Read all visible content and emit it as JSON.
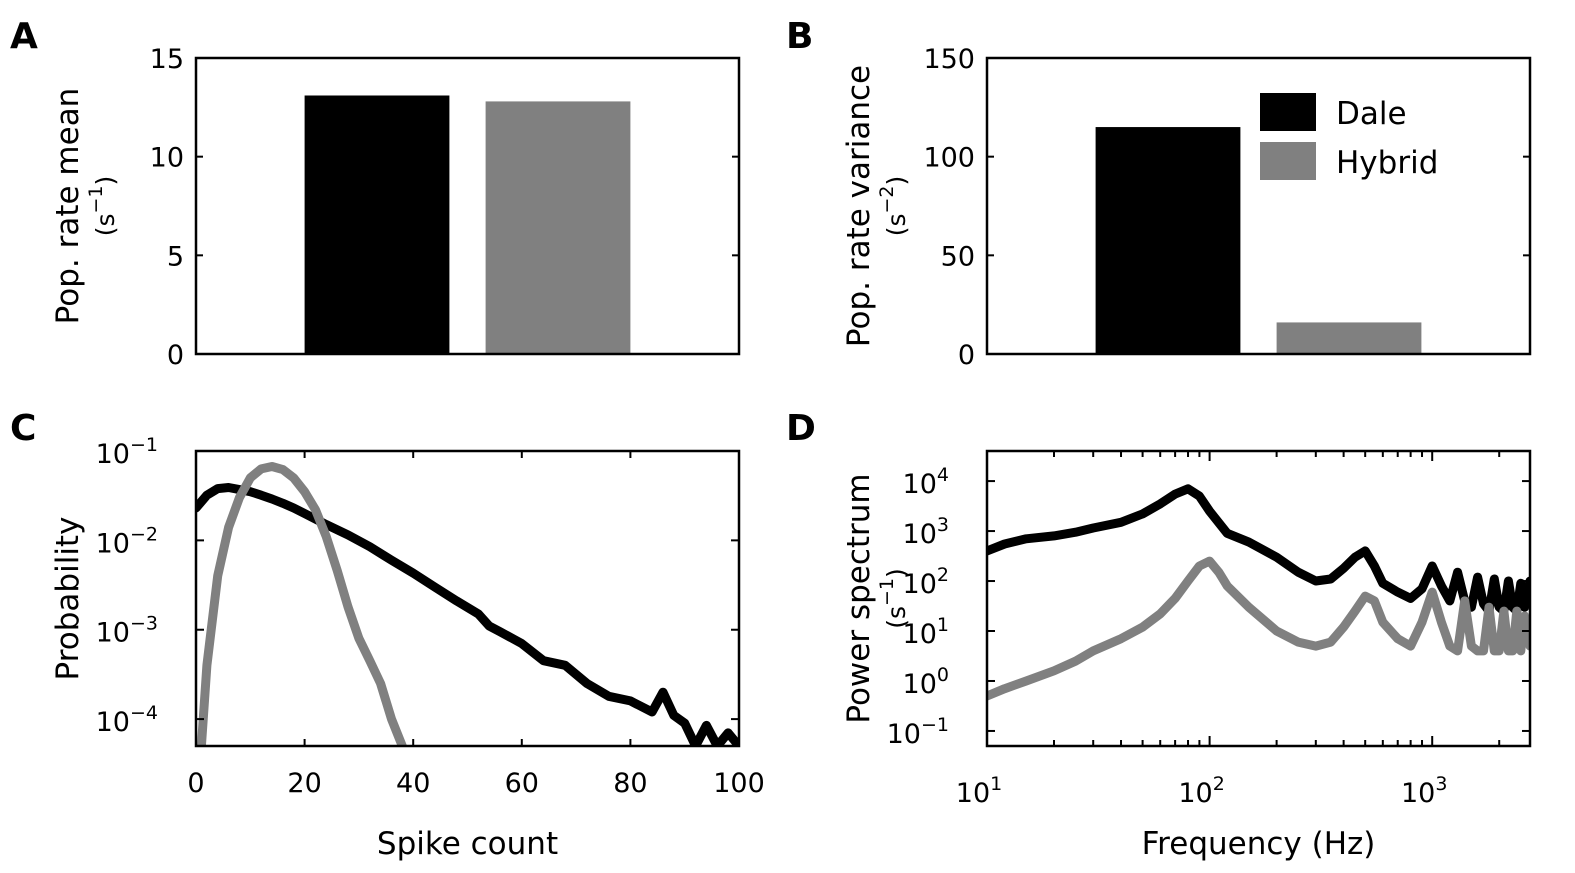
{
  "colors": {
    "Dale": "#000000",
    "Hybrid": "#808080",
    "axes": "#000000"
  },
  "legend": {
    "placement": "top-right",
    "entries": [
      "Dale",
      "Hybrid"
    ]
  },
  "chart_data": [
    {
      "panel": "A",
      "type": "bar",
      "categories": [
        "Dale",
        "Hybrid"
      ],
      "values": [
        13.1,
        12.8
      ],
      "ylabel": "Pop. rate mean",
      "yunit": {
        "base": "(s",
        "exp": "−1",
        "close": ")"
      },
      "ylim": [
        0,
        15
      ],
      "yticks": [
        "0",
        "5",
        "10",
        "15"
      ]
    },
    {
      "panel": "B",
      "type": "bar",
      "categories": [
        "Dale",
        "Hybrid"
      ],
      "values": [
        115,
        16
      ],
      "ylabel": "Pop. rate variance",
      "yunit": {
        "base": "(s",
        "exp": "−2",
        "close": ")"
      },
      "ylim": [
        0,
        150
      ],
      "yticks": [
        "0",
        "50",
        "100",
        "150"
      ],
      "legend": [
        "Dale",
        "Hybrid"
      ]
    },
    {
      "panel": "C",
      "type": "line",
      "xlabel": "Spike count",
      "ylabel": "Probability",
      "yscale": "log",
      "xlim": [
        0,
        100
      ],
      "ylim": [
        5e-05,
        0.1
      ],
      "xticks": [
        "0",
        "20",
        "40",
        "60",
        "80",
        "100"
      ],
      "yticks": [
        {
          "base": "10",
          "exp": "−4"
        },
        {
          "base": "10",
          "exp": "−3"
        },
        {
          "base": "10",
          "exp": "−2"
        },
        {
          "base": "10",
          "exp": "−1"
        }
      ],
      "series": [
        {
          "name": "Dale",
          "x": [
            0,
            2,
            4,
            6,
            8,
            10,
            12,
            14,
            16,
            18,
            20,
            24,
            28,
            32,
            36,
            40,
            44,
            48,
            52,
            54,
            56,
            60,
            64,
            68,
            72,
            76,
            80,
            84,
            86,
            88,
            90,
            92,
            94,
            96,
            98,
            100
          ],
          "y": [
            0.023,
            0.032,
            0.038,
            0.039,
            0.037,
            0.035,
            0.032,
            0.029,
            0.026,
            0.023,
            0.02,
            0.015,
            0.0115,
            0.0085,
            0.006,
            0.0043,
            0.003,
            0.0021,
            0.0015,
            0.0011,
            0.00095,
            0.0007,
            0.00045,
            0.0004,
            0.00025,
            0.00018,
            0.00016,
            0.00012,
            0.0002,
            0.00011,
            9e-05,
            5e-05,
            8.5e-05,
            5e-05,
            7e-05,
            5e-05
          ]
        },
        {
          "name": "Hybrid",
          "x": [
            1,
            2,
            4,
            6,
            8,
            10,
            12,
            14,
            16,
            18,
            20,
            22,
            24,
            26,
            28,
            30,
            32,
            34,
            36,
            38
          ],
          "y": [
            5e-05,
            0.0004,
            0.004,
            0.014,
            0.03,
            0.05,
            0.063,
            0.067,
            0.062,
            0.05,
            0.035,
            0.022,
            0.011,
            0.0046,
            0.0018,
            0.0008,
            0.00045,
            0.00025,
            0.0001,
            5e-05
          ]
        }
      ]
    },
    {
      "panel": "D",
      "type": "line",
      "xlabel": "Frequency (Hz)",
      "ylabel": "Power spectrum",
      "yunit": {
        "base": "(s",
        "exp": "−1",
        "close": ")"
      },
      "xscale": "log",
      "yscale": "log",
      "xlim": [
        10,
        2750
      ],
      "ylim": [
        0.05,
        40000
      ],
      "xticks": [
        {
          "base": "10",
          "exp": "1"
        },
        {
          "base": "10",
          "exp": "2"
        },
        {
          "base": "10",
          "exp": "3"
        }
      ],
      "yticks": [
        {
          "base": "10",
          "exp": "−1"
        },
        {
          "base": "10",
          "exp": "0"
        },
        {
          "base": "10",
          "exp": "1"
        },
        {
          "base": "10",
          "exp": "2"
        },
        {
          "base": "10",
          "exp": "3"
        },
        {
          "base": "10",
          "exp": "4"
        }
      ],
      "series": [
        {
          "name": "Dale",
          "x": [
            10,
            12,
            15,
            20,
            25,
            30,
            40,
            50,
            60,
            70,
            80,
            90,
            100,
            120,
            150,
            200,
            250,
            300,
            350,
            400,
            450,
            500,
            550,
            600,
            700,
            800,
            900,
            1000,
            1100,
            1200,
            1300,
            1400,
            1500,
            1600,
            1700,
            1800,
            1900,
            2000,
            2100,
            2200,
            2300,
            2400,
            2500,
            2600,
            2750
          ],
          "y": [
            400,
            550,
            700,
            800,
            950,
            1150,
            1500,
            2200,
            3500,
            5500,
            7000,
            5000,
            2500,
            900,
            600,
            300,
            150,
            100,
            110,
            180,
            300,
            400,
            200,
            90,
            60,
            45,
            70,
            200,
            80,
            40,
            150,
            40,
            30,
            120,
            35,
            25,
            110,
            30,
            25,
            100,
            30,
            25,
            90,
            30,
            100
          ]
        },
        {
          "name": "Hybrid",
          "x": [
            10,
            12,
            15,
            20,
            25,
            30,
            40,
            50,
            60,
            70,
            80,
            90,
            100,
            110,
            120,
            150,
            200,
            250,
            300,
            350,
            400,
            450,
            500,
            550,
            600,
            700,
            800,
            900,
            1000,
            1100,
            1200,
            1300,
            1400,
            1500,
            1600,
            1700,
            1800,
            1900,
            2000,
            2100,
            2200,
            2300,
            2400,
            2500,
            2600,
            2750
          ],
          "y": [
            0.5,
            0.7,
            1,
            1.6,
            2.5,
            4,
            7,
            12,
            22,
            45,
            100,
            200,
            250,
            150,
            80,
            30,
            10,
            6,
            5,
            6,
            12,
            25,
            50,
            40,
            15,
            7,
            5,
            15,
            60,
            15,
            5,
            4,
            40,
            5,
            4,
            4,
            30,
            4,
            4,
            25,
            4,
            4,
            25,
            4,
            20,
            5
          ]
        }
      ]
    }
  ]
}
